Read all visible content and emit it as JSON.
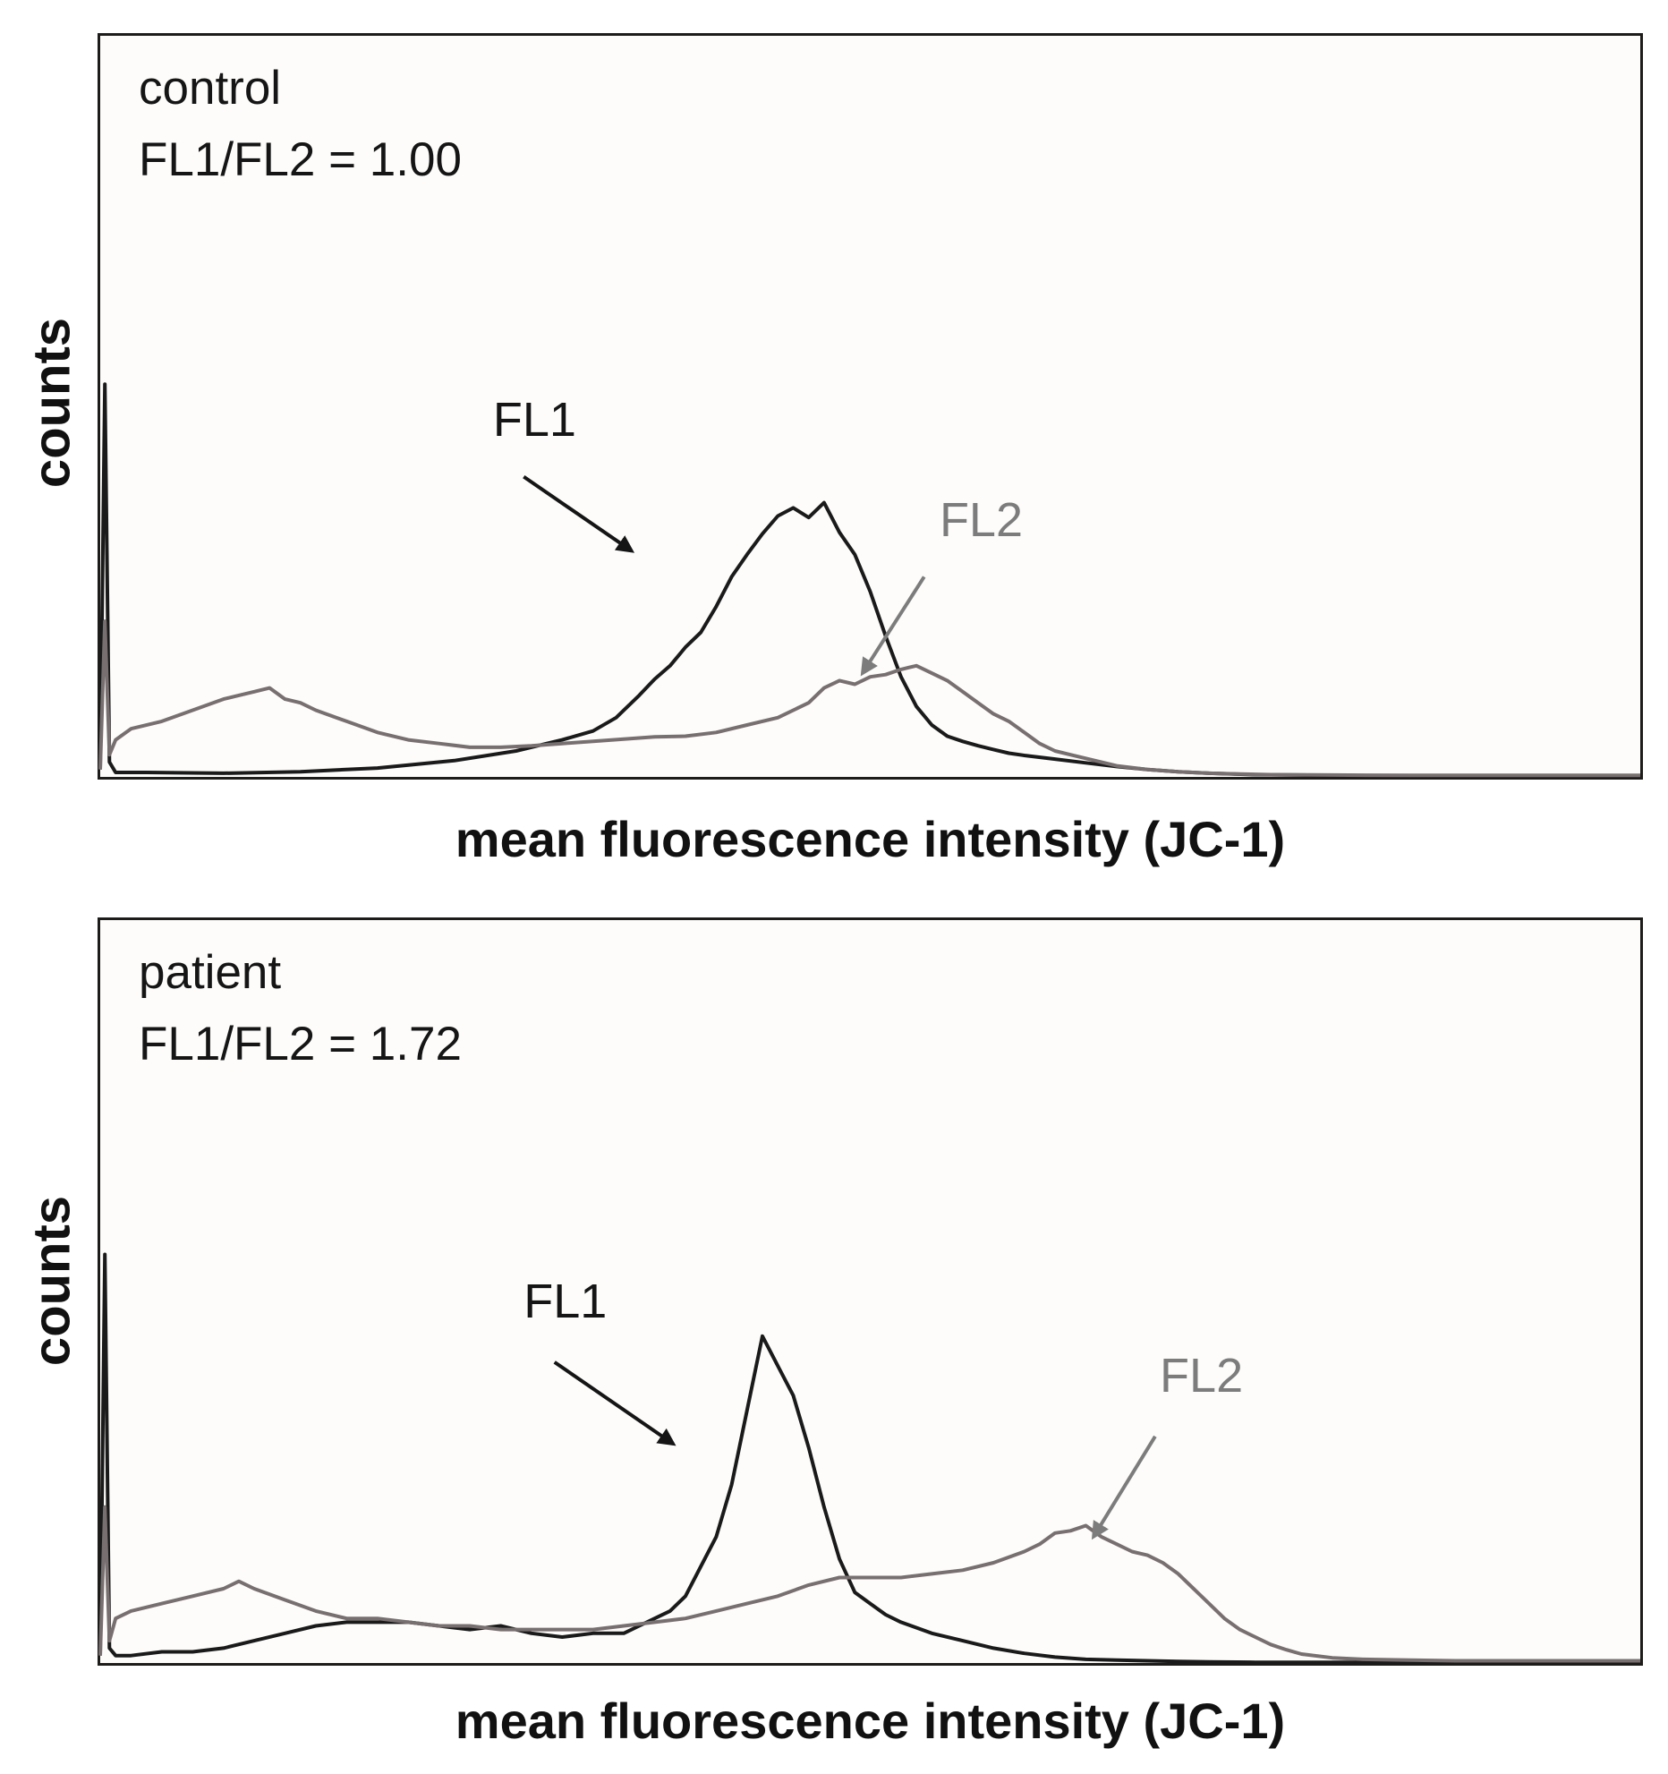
{
  "chart_data": [
    {
      "type": "line",
      "panel": "control",
      "annotation_title": "control",
      "annotation_ratio": "FL1/FL2 = 1.00",
      "xlabel": "mean fluorescence intensity (JC-1)",
      "ylabel": "counts",
      "xlim": [
        0,
        100
      ],
      "ylim": [
        0,
        100
      ],
      "grid": false,
      "legend": "none",
      "series": [
        {
          "name": "FL1",
          "color": "#1a1a1a",
          "x": [
            0,
            0.3,
            0.6,
            1,
            3,
            8,
            13,
            18,
            23,
            27,
            30,
            32,
            33.5,
            35,
            36,
            37,
            38,
            39,
            40,
            41,
            42,
            43,
            44,
            45,
            46,
            47,
            48,
            49,
            50,
            51,
            52,
            53,
            54,
            55,
            56,
            57,
            58,
            59,
            60,
            62,
            64,
            66,
            68,
            70,
            72,
            75,
            80,
            90,
            100
          ],
          "y": [
            1,
            53,
            2,
            0.6,
            0.6,
            0.5,
            0.7,
            1.2,
            2.2,
            3.5,
            5,
            6.2,
            8,
            11,
            13.2,
            15,
            17.5,
            19.5,
            23,
            27,
            30,
            32.8,
            35.2,
            36.3,
            35,
            37,
            33,
            30,
            25,
            19,
            13.5,
            9.5,
            7,
            5.5,
            4.8,
            4.2,
            3.7,
            3.2,
            2.9,
            2.4,
            1.9,
            1.4,
            1.0,
            0.7,
            0.5,
            0.3,
            0.2,
            0.1,
            0.1
          ]
        },
        {
          "name": "FL2",
          "color": "#787070",
          "x": [
            0,
            0.3,
            0.6,
            1,
            2,
            4,
            6,
            8,
            9,
            10,
            11,
            12,
            13,
            14,
            16,
            18,
            20,
            22,
            24,
            26,
            28,
            30,
            32,
            34,
            36,
            38,
            40,
            42,
            44,
            46,
            47,
            48,
            49,
            50,
            51,
            52,
            53,
            54,
            55,
            56,
            57,
            58,
            59,
            60,
            61,
            62,
            63,
            64,
            66,
            68,
            70,
            72,
            74,
            76,
            80,
            85,
            90,
            100
          ],
          "y": [
            1,
            21,
            3,
            5,
            6.5,
            7.5,
            9,
            10.5,
            11,
            11.5,
            12,
            10.5,
            10,
            9,
            7.5,
            6,
            5,
            4.5,
            4,
            4,
            4.2,
            4.5,
            4.8,
            5.1,
            5.4,
            5.5,
            6,
            7,
            8,
            10,
            12,
            13,
            12.5,
            13.5,
            13.8,
            14.5,
            15,
            14,
            13,
            11.5,
            10,
            8.5,
            7.5,
            6,
            4.5,
            3.5,
            3,
            2.5,
            1.5,
            1,
            0.7,
            0.5,
            0.4,
            0.3,
            0.25,
            0.2,
            0.2,
            0.2
          ]
        }
      ],
      "arrows": [
        {
          "label": "FL1",
          "color": "#151515",
          "text_x": 25.5,
          "text_y": 46,
          "from_x": 27.5,
          "from_y": 40.5,
          "to_x": 34.5,
          "to_y": 30.5
        },
        {
          "label": "FL2",
          "color": "#7c7c7c",
          "text_x": 54.5,
          "text_y": 32.5,
          "from_x": 53.5,
          "from_y": 27,
          "to_x": 49.5,
          "to_y": 14
        }
      ]
    },
    {
      "type": "line",
      "panel": "patient",
      "annotation_title": "patient",
      "annotation_ratio": "FL1/FL2 = 1.72",
      "xlabel": "mean fluorescence intensity (JC-1)",
      "ylabel": "counts",
      "xlim": [
        0,
        100
      ],
      "ylim": [
        0,
        100
      ],
      "grid": false,
      "legend": "none",
      "series": [
        {
          "name": "FL1",
          "color": "#1a1a1a",
          "x": [
            0,
            0.3,
            0.6,
            1,
            2,
            4,
            6,
            8,
            10,
            12,
            14,
            16,
            18,
            20,
            22,
            24,
            26,
            28,
            30,
            32,
            33,
            34,
            35,
            36,
            37,
            38,
            39,
            40,
            41,
            42,
            43,
            44,
            45,
            46,
            47,
            48,
            49,
            50,
            51,
            52,
            54,
            56,
            58,
            60,
            62,
            64,
            66,
            68,
            70,
            72,
            75,
            80,
            90,
            100
          ],
          "y": [
            1,
            55,
            2,
            1,
            1,
            1.5,
            1.5,
            2,
            3,
            4,
            5,
            5.5,
            5.5,
            5.5,
            5,
            4.5,
            5,
            4,
            3.5,
            4,
            4,
            4,
            5,
            6,
            7,
            9,
            13,
            17,
            24,
            34,
            44,
            40,
            36,
            29,
            21,
            14,
            9.5,
            8,
            6.5,
            5.5,
            4,
            3,
            2,
            1.3,
            0.8,
            0.5,
            0.4,
            0.3,
            0.2,
            0.15,
            0.1,
            0.1,
            0.1,
            0.1
          ]
        },
        {
          "name": "FL2",
          "color": "#787070",
          "x": [
            0,
            0.3,
            0.6,
            1,
            2,
            4,
            6,
            8,
            9,
            10,
            12,
            14,
            16,
            18,
            20,
            22,
            24,
            26,
            28,
            30,
            32,
            34,
            36,
            38,
            40,
            42,
            44,
            46,
            48,
            50,
            52,
            54,
            56,
            58,
            60,
            61,
            62,
            63,
            64,
            65,
            66,
            67,
            68,
            69,
            70,
            71,
            72,
            73,
            74,
            75,
            76,
            77,
            78,
            80,
            82,
            85,
            88,
            90,
            95,
            100
          ],
          "y": [
            1,
            21,
            3,
            6,
            7,
            8,
            9,
            10,
            11,
            10,
            8.5,
            7,
            6,
            6,
            5.5,
            5,
            5,
            4.5,
            4.5,
            4.5,
            4.5,
            5,
            5.5,
            6,
            7,
            8,
            9,
            10.5,
            11.5,
            11.5,
            11.5,
            12,
            12.5,
            13.5,
            15,
            16,
            17.5,
            17.8,
            18.5,
            17,
            16,
            15,
            14.5,
            13.5,
            12,
            10,
            8,
            6,
            4.5,
            3.5,
            2.5,
            1.8,
            1.2,
            0.7,
            0.5,
            0.4,
            0.3,
            0.3,
            0.3,
            0.3
          ]
        }
      ],
      "arrows": [
        {
          "label": "FL1",
          "color": "#151515",
          "text_x": 27.5,
          "text_y": 46.5,
          "from_x": 29.5,
          "from_y": 40.5,
          "to_x": 37.2,
          "to_y": 29.5
        },
        {
          "label": "FL2",
          "color": "#7c7c7c",
          "text_x": 68.8,
          "text_y": 36.5,
          "from_x": 68.5,
          "from_y": 30.5,
          "to_x": 64.5,
          "to_y": 17
        }
      ]
    }
  ]
}
